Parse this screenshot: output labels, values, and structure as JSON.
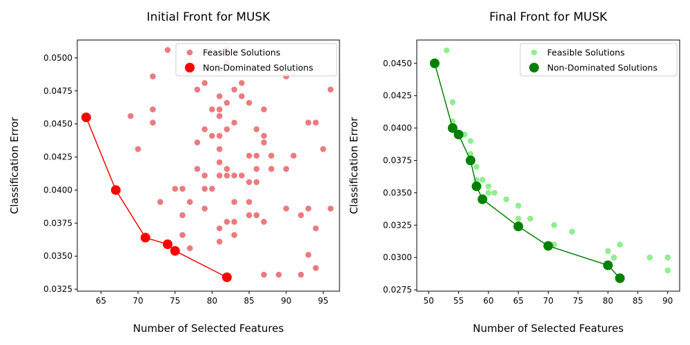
{
  "chart_data": [
    {
      "type": "scatter",
      "title": "Initial Front for MUSK",
      "xlabel": "Number of Selected Features",
      "ylabel": "Classification Error",
      "xlim": [
        61.8,
        97.2
      ],
      "ylim": [
        0.03235,
        0.05135
      ],
      "xticks": [
        65,
        70,
        75,
        80,
        85,
        90,
        95
      ],
      "xtick_labels": [
        "65",
        "70",
        "75",
        "80",
        "85",
        "90",
        "95"
      ],
      "yticks": [
        0.0325,
        0.035,
        0.0375,
        0.04,
        0.0425,
        0.045,
        0.0475,
        0.05
      ],
      "ytick_labels": [
        "0.0325",
        "0.0350",
        "0.0375",
        "0.0400",
        "0.0425",
        "0.0450",
        "0.0475",
        "0.0500"
      ],
      "legend_position": "top-right",
      "colors": {
        "feasible": "#eb7b7e",
        "non_dominated": "#ff0000"
      },
      "series": [
        {
          "name": "Feasible Solutions",
          "points": [
            [
              74,
              0.0506
            ],
            [
              82,
              0.0506
            ],
            [
              72,
              0.0486
            ],
            [
              90,
              0.0486
            ],
            [
              96,
              0.0476
            ],
            [
              79,
              0.0481
            ],
            [
              84,
              0.0481
            ],
            [
              81,
              0.0491
            ],
            [
              82,
              0.0496
            ],
            [
              78,
              0.0476
            ],
            [
              83,
              0.0476
            ],
            [
              81,
              0.0471
            ],
            [
              84,
              0.0471
            ],
            [
              82,
              0.0466
            ],
            [
              85,
              0.0466
            ],
            [
              72,
              0.0461
            ],
            [
              80,
              0.0461
            ],
            [
              81,
              0.0461
            ],
            [
              87,
              0.0461
            ],
            [
              69,
              0.0456
            ],
            [
              81,
              0.0456
            ],
            [
              72,
              0.0451
            ],
            [
              83,
              0.0451
            ],
            [
              93,
              0.0451
            ],
            [
              94,
              0.0451
            ],
            [
              79,
              0.0446
            ],
            [
              82,
              0.0446
            ],
            [
              86,
              0.0446
            ],
            [
              80,
              0.0441
            ],
            [
              81,
              0.0441
            ],
            [
              87,
              0.0441
            ],
            [
              78,
              0.0436
            ],
            [
              87,
              0.0436
            ],
            [
              70,
              0.0431
            ],
            [
              81,
              0.0431
            ],
            [
              95,
              0.0431
            ],
            [
              85,
              0.0426
            ],
            [
              86,
              0.0426
            ],
            [
              88,
              0.0426
            ],
            [
              91,
              0.0426
            ],
            [
              81,
              0.0421
            ],
            [
              78,
              0.0416
            ],
            [
              82,
              0.0416
            ],
            [
              86,
              0.0416
            ],
            [
              88,
              0.0416
            ],
            [
              90,
              0.0416
            ],
            [
              79,
              0.0411
            ],
            [
              81,
              0.0411
            ],
            [
              82,
              0.0411
            ],
            [
              83,
              0.0411
            ],
            [
              84,
              0.0411
            ],
            [
              85,
              0.0406
            ],
            [
              86,
              0.0406
            ],
            [
              75,
              0.0401
            ],
            [
              76,
              0.0401
            ],
            [
              79,
              0.0401
            ],
            [
              80,
              0.0401
            ],
            [
              73,
              0.0391
            ],
            [
              77,
              0.0391
            ],
            [
              83,
              0.0391
            ],
            [
              85,
              0.0391
            ],
            [
              79,
              0.0386
            ],
            [
              90,
              0.0386
            ],
            [
              93,
              0.0386
            ],
            [
              96,
              0.0386
            ],
            [
              76,
              0.0381
            ],
            [
              85,
              0.0381
            ],
            [
              86,
              0.0381
            ],
            [
              92,
              0.0381
            ],
            [
              82,
              0.0376
            ],
            [
              83,
              0.0376
            ],
            [
              87,
              0.0376
            ],
            [
              81,
              0.0371
            ],
            [
              94,
              0.0371
            ],
            [
              76,
              0.0366
            ],
            [
              83,
              0.0366
            ],
            [
              81,
              0.0361
            ],
            [
              77,
              0.0356
            ],
            [
              93,
              0.0351
            ],
            [
              94,
              0.0341
            ],
            [
              87,
              0.0336
            ],
            [
              89,
              0.0336
            ],
            [
              92,
              0.0336
            ]
          ]
        },
        {
          "name": "Non-Dominated Solutions",
          "points": [
            [
              63,
              0.0455
            ],
            [
              67,
              0.04
            ],
            [
              71,
              0.0364
            ],
            [
              74,
              0.0359
            ],
            [
              75,
              0.0354
            ],
            [
              82,
              0.0334
            ]
          ]
        }
      ]
    },
    {
      "type": "scatter",
      "title": "Final Front for MUSK",
      "xlabel": "Number of Selected Features",
      "ylabel": "Classification Error",
      "xlim": [
        48.0,
        92.0
      ],
      "ylim": [
        0.0274,
        0.0468
      ],
      "xticks": [
        50,
        55,
        60,
        65,
        70,
        75,
        80,
        85,
        90
      ],
      "xtick_labels": [
        "50",
        "55",
        "60",
        "65",
        "70",
        "75",
        "80",
        "85",
        "90"
      ],
      "yticks": [
        0.0275,
        0.03,
        0.0325,
        0.035,
        0.0375,
        0.04,
        0.0425,
        0.045
      ],
      "ytick_labels": [
        "0.0275",
        "0.0300",
        "0.0325",
        "0.0350",
        "0.0375",
        "0.0400",
        "0.0425",
        "0.0450"
      ],
      "legend_position": "top-right",
      "colors": {
        "feasible": "#90ee90",
        "non_dominated": "#008000"
      },
      "series": [
        {
          "name": "Feasible Solutions",
          "points": [
            [
              53,
              0.046
            ],
            [
              54,
              0.042
            ],
            [
              54,
              0.0405
            ],
            [
              56,
              0.0395
            ],
            [
              57,
              0.039
            ],
            [
              57,
              0.038
            ],
            [
              58,
              0.037
            ],
            [
              58,
              0.036
            ],
            [
              59,
              0.036
            ],
            [
              60,
              0.0355
            ],
            [
              60,
              0.035
            ],
            [
              61,
              0.035
            ],
            [
              63,
              0.0345
            ],
            [
              65,
              0.034
            ],
            [
              65,
              0.033
            ],
            [
              67,
              0.033
            ],
            [
              71,
              0.0325
            ],
            [
              71,
              0.031
            ],
            [
              74,
              0.032
            ],
            [
              80,
              0.0305
            ],
            [
              81,
              0.03
            ],
            [
              82,
              0.031
            ],
            [
              87,
              0.03
            ],
            [
              90,
              0.03
            ],
            [
              90,
              0.03
            ],
            [
              90,
              0.029
            ]
          ]
        },
        {
          "name": "Non-Dominated Solutions",
          "points": [
            [
              51,
              0.045
            ],
            [
              54,
              0.04
            ],
            [
              55,
              0.0395
            ],
            [
              57,
              0.0375
            ],
            [
              58,
              0.0355
            ],
            [
              59,
              0.0345
            ],
            [
              65,
              0.0324
            ],
            [
              70,
              0.0309
            ],
            [
              80,
              0.0294
            ],
            [
              82,
              0.0284
            ]
          ]
        }
      ]
    }
  ]
}
